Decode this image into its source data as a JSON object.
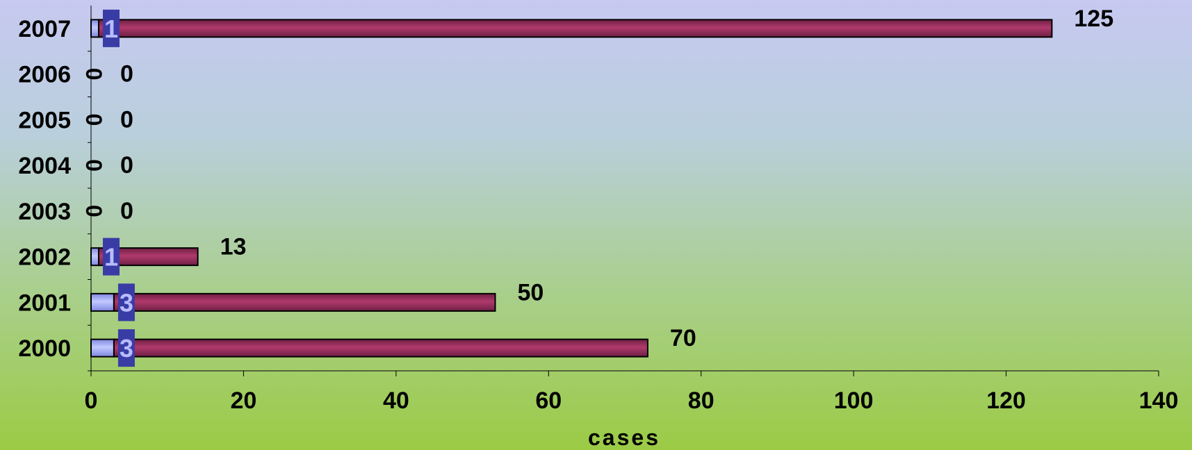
{
  "chart_data": {
    "type": "bar",
    "orientation": "horizontal",
    "stacked": true,
    "categories": [
      "2000",
      "2001",
      "2002",
      "2003",
      "2004",
      "2005",
      "2006",
      "2007"
    ],
    "series": [
      {
        "values": [
          3,
          3,
          1,
          0,
          0,
          0,
          0,
          1
        ],
        "color": "#9fa8f4"
      },
      {
        "values": [
          70,
          50,
          13,
          0,
          0,
          0,
          0,
          125
        ],
        "color": "#9b2d5e"
      }
    ],
    "data_labels_1": [
      "3",
      "3",
      "1",
      "0",
      "0",
      "0",
      "0",
      "1"
    ],
    "data_labels_2": [
      "70",
      "50",
      "13",
      "0",
      "0",
      "0",
      "0",
      "125"
    ],
    "xlabel": "cases",
    "xlim": [
      0,
      140
    ],
    "xticks": [
      0,
      20,
      40,
      60,
      80,
      100,
      120,
      140
    ],
    "grid": false,
    "legend": "none"
  }
}
